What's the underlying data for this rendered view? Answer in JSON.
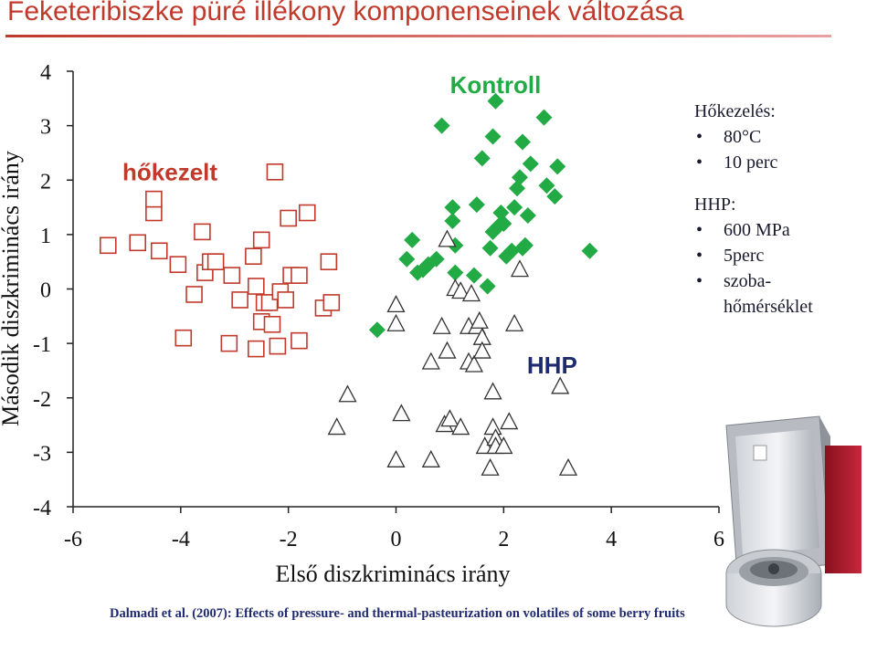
{
  "page_title": "Feketeribiszke püré illékony komponenseinek változása",
  "notes": {
    "heating_title": "Hőkezelés:",
    "heating_items": [
      "80°C",
      "10 perc"
    ],
    "hhp_title": "HHP:",
    "hhp_items": [
      "600 MPa",
      "5perc",
      "szoba-hőmérséklet"
    ]
  },
  "citation": "Dalmadi et al. (2007): Effects of pressure- and thermal-pasteurization on volatiles of some berry fruits",
  "colors": {
    "title": "#c0392b",
    "heat": "#c0392b",
    "control": "#22aa44",
    "hhp": "#333333",
    "hhp_label": "#1f2a70"
  },
  "icons": [
    "high-pressure-device-icon"
  ],
  "chart_data": {
    "type": "scatter",
    "title": "",
    "xlabel": "Első diszkriminács irány",
    "ylabel": "Második diszkriminács irány",
    "xlim": [
      -6,
      6
    ],
    "ylim": [
      -4,
      4
    ],
    "xticks": [
      "-6",
      "-4",
      "-2",
      "0",
      "2",
      "4",
      "6"
    ],
    "yticks": [
      "-4",
      "-3",
      "-2",
      "-1",
      "0",
      "1",
      "2",
      "3",
      "4"
    ],
    "grid": false,
    "series": [
      {
        "name": "hőkezelt",
        "marker": "square",
        "color": "#c0392b",
        "points": [
          [
            -5.35,
            0.8
          ],
          [
            -4.8,
            0.85
          ],
          [
            -4.5,
            1.4
          ],
          [
            -4.5,
            1.65
          ],
          [
            -4.4,
            0.7
          ],
          [
            -4.05,
            0.45
          ],
          [
            -3.95,
            -0.9
          ],
          [
            -3.75,
            -0.1
          ],
          [
            -3.6,
            1.05
          ],
          [
            -3.55,
            0.3
          ],
          [
            -3.45,
            0.5
          ],
          [
            -3.35,
            0.5
          ],
          [
            -3.1,
            -1.0
          ],
          [
            -3.05,
            0.25
          ],
          [
            -2.9,
            -0.2
          ],
          [
            -2.65,
            0.6
          ],
          [
            -2.6,
            -1.1
          ],
          [
            -2.6,
            0.05
          ],
          [
            -2.5,
            -0.6
          ],
          [
            -2.5,
            0.9
          ],
          [
            -2.45,
            -0.25
          ],
          [
            -2.35,
            -0.25
          ],
          [
            -2.3,
            -0.65
          ],
          [
            -2.25,
            2.15
          ],
          [
            -2.2,
            -1.05
          ],
          [
            -2.15,
            -0.05
          ],
          [
            -2.05,
            -0.2
          ],
          [
            -2.0,
            1.3
          ],
          [
            -1.95,
            0.25
          ],
          [
            -1.8,
            0.25
          ],
          [
            -1.8,
            -0.95
          ],
          [
            -1.65,
            1.4
          ],
          [
            -1.35,
            -0.35
          ],
          [
            -1.25,
            0.5
          ],
          [
            -1.2,
            -0.25
          ]
        ]
      },
      {
        "name": "Kontroll",
        "marker": "diamond",
        "color": "#22aa44",
        "points": [
          [
            -0.35,
            -0.75
          ],
          [
            0.2,
            0.55
          ],
          [
            0.3,
            0.9
          ],
          [
            0.4,
            0.3
          ],
          [
            0.5,
            0.35
          ],
          [
            0.6,
            0.45
          ],
          [
            0.75,
            0.55
          ],
          [
            0.85,
            3.0
          ],
          [
            1.05,
            1.25
          ],
          [
            1.05,
            1.5
          ],
          [
            1.1,
            0.3
          ],
          [
            1.1,
            0.8
          ],
          [
            1.45,
            0.25
          ],
          [
            1.5,
            1.55
          ],
          [
            1.6,
            2.4
          ],
          [
            1.7,
            0.05
          ],
          [
            1.75,
            0.75
          ],
          [
            1.8,
            2.8
          ],
          [
            1.8,
            1.05
          ],
          [
            1.85,
            3.45
          ],
          [
            1.9,
            1.15
          ],
          [
            1.95,
            1.4
          ],
          [
            2.0,
            1.2
          ],
          [
            2.05,
            0.6
          ],
          [
            2.15,
            0.7
          ],
          [
            2.2,
            1.5
          ],
          [
            2.25,
            1.85
          ],
          [
            2.3,
            2.05
          ],
          [
            2.35,
            2.7
          ],
          [
            2.35,
            0.75
          ],
          [
            2.4,
            0.8
          ],
          [
            2.45,
            1.35
          ],
          [
            2.5,
            2.3
          ],
          [
            2.75,
            3.15
          ],
          [
            2.8,
            1.9
          ],
          [
            2.95,
            1.7
          ],
          [
            3.0,
            2.25
          ],
          [
            3.6,
            0.7
          ]
        ]
      },
      {
        "name": "HHP",
        "marker": "triangle",
        "color": "#333333",
        "points": [
          [
            -1.1,
            -2.55
          ],
          [
            -0.9,
            -1.95
          ],
          [
            0.0,
            -0.3
          ],
          [
            0.0,
            -0.65
          ],
          [
            0.0,
            -3.15
          ],
          [
            0.1,
            -2.3
          ],
          [
            0.65,
            -3.15
          ],
          [
            0.65,
            -1.35
          ],
          [
            0.85,
            -0.7
          ],
          [
            0.9,
            -2.5
          ],
          [
            0.95,
            -1.15
          ],
          [
            0.95,
            0.9
          ],
          [
            1.0,
            -2.4
          ],
          [
            1.1,
            0.0
          ],
          [
            1.2,
            -2.55
          ],
          [
            1.2,
            -0.05
          ],
          [
            1.35,
            -0.7
          ],
          [
            1.35,
            -1.35
          ],
          [
            1.4,
            -0.1
          ],
          [
            1.45,
            -1.4
          ],
          [
            1.5,
            -0.7
          ],
          [
            1.55,
            -0.6
          ],
          [
            1.6,
            -0.9
          ],
          [
            1.6,
            -1.15
          ],
          [
            1.65,
            -2.9
          ],
          [
            1.75,
            -3.3
          ],
          [
            1.8,
            -2.55
          ],
          [
            1.8,
            -1.9
          ],
          [
            1.85,
            -2.75
          ],
          [
            1.85,
            -2.9
          ],
          [
            2.0,
            -2.9
          ],
          [
            2.1,
            -2.45
          ],
          [
            2.2,
            -0.65
          ],
          [
            2.3,
            0.35
          ],
          [
            3.05,
            -1.8
          ],
          [
            3.2,
            -3.3
          ]
        ]
      }
    ],
    "annotations": [
      {
        "text": "hőkezelt",
        "x": -4.2,
        "y": 2.15,
        "color": "#c0392b"
      },
      {
        "text": "Kontroll",
        "x": 1.85,
        "y": 3.75,
        "color": "#22aa44"
      },
      {
        "text": "HHP",
        "x": 2.9,
        "y": -1.4,
        "color": "#1f2a70"
      }
    ]
  }
}
